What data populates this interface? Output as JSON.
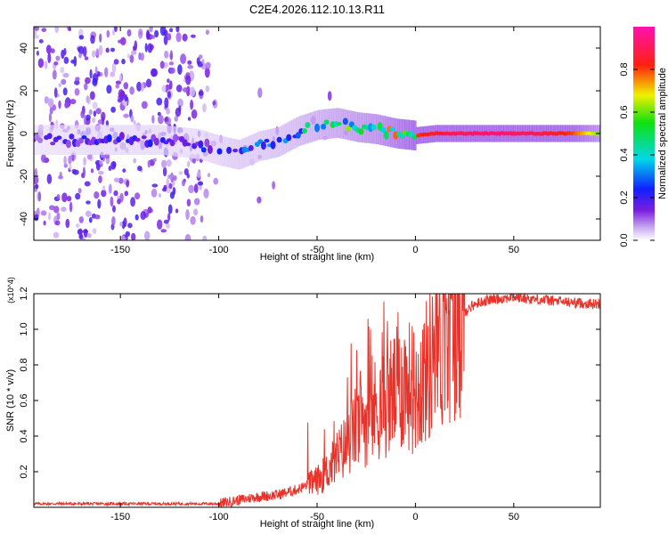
{
  "figure_title": "C2E4.2026.112.10.13.R11",
  "chart_data": [
    {
      "type": "heatmap",
      "title": "C2E4.2026.112.10.13.R11",
      "xlabel": "Height of straight line (km)",
      "ylabel": "Frequency (Hz)",
      "xlim": [
        -194,
        94
      ],
      "ylim": [
        -50,
        50
      ],
      "xticks": [
        -150,
        -100,
        -50,
        0,
        50
      ],
      "yticks": [
        -40,
        -20,
        0,
        20,
        40
      ],
      "xtick_labels": [
        "-150",
        "-100",
        "-50",
        "0",
        "50"
      ],
      "ytick_labels": [
        "-40",
        "-20",
        "0",
        "20",
        "40"
      ],
      "colorbar": {
        "label": "Normalized spectral amplitude",
        "range": [
          0,
          1
        ],
        "ticks": [
          0.0,
          0.2,
          0.4,
          0.6,
          0.8
        ],
        "tick_labels": [
          "0.0",
          "0.2",
          "0.4",
          "0.6",
          "0.8"
        ],
        "colormap": "rainbow (purple → blue → cyan → green → yellow → red → magenta)"
      },
      "ridge": {
        "description": "dominant spectral line vs height",
        "x": [
          -194,
          -170,
          -150,
          -130,
          -110,
          -100,
          -90,
          -80,
          -70,
          -60,
          -50,
          -40,
          -30,
          -20,
          -10,
          0,
          10,
          20,
          40,
          60,
          80,
          94
        ],
        "frequency": [
          -3,
          -3,
          -3,
          -3,
          -5,
          -8,
          -10,
          -6,
          -4,
          1,
          4,
          5,
          3,
          2,
          0,
          -1,
          0,
          0,
          0,
          0,
          0,
          0
        ],
        "amplitude": [
          0.15,
          0.2,
          0.2,
          0.2,
          0.2,
          0.25,
          0.3,
          0.3,
          0.35,
          0.4,
          0.45,
          0.5,
          0.55,
          0.6,
          0.7,
          0.8,
          0.85,
          0.9,
          0.92,
          0.9,
          0.8,
          0.6
        ]
      }
    },
    {
      "type": "line",
      "xlabel": "Height of straight line (km)",
      "ylabel": "SNR (10 * v/v)",
      "y_multiplier": "(x10^4)",
      "xlim": [
        -194,
        94
      ],
      "ylim": [
        0,
        1.2
      ],
      "xticks": [
        -150,
        -100,
        -50,
        0,
        50
      ],
      "yticks": [
        0.2,
        0.4,
        0.6,
        0.8,
        1.0,
        1.2
      ],
      "xtick_labels": [
        "-150",
        "-100",
        "-50",
        "0",
        "50"
      ],
      "ytick_labels": [
        "0.2",
        "0.4",
        "0.6",
        "0.8",
        "1.0",
        "1.2"
      ],
      "color": "#e8332a",
      "series": [
        {
          "name": "SNR",
          "x": [
            -194,
            -150,
            -120,
            -110,
            -100,
            -90,
            -80,
            -70,
            -60,
            -50,
            -45,
            -40,
            -35,
            -30,
            -25,
            -20,
            -15,
            -10,
            -5,
            0,
            5,
            10,
            15,
            20,
            25,
            30,
            35,
            40,
            50,
            60,
            70,
            80,
            94
          ],
          "y": [
            0.02,
            0.02,
            0.02,
            0.02,
            0.02,
            0.04,
            0.06,
            0.07,
            0.1,
            0.15,
            0.2,
            0.28,
            0.35,
            0.45,
            0.5,
            0.55,
            0.6,
            0.65,
            0.7,
            0.65,
            0.75,
            0.85,
            0.95,
            1.05,
            1.1,
            1.14,
            1.16,
            1.17,
            1.18,
            1.17,
            1.16,
            1.15,
            1.14
          ]
        }
      ]
    }
  ]
}
